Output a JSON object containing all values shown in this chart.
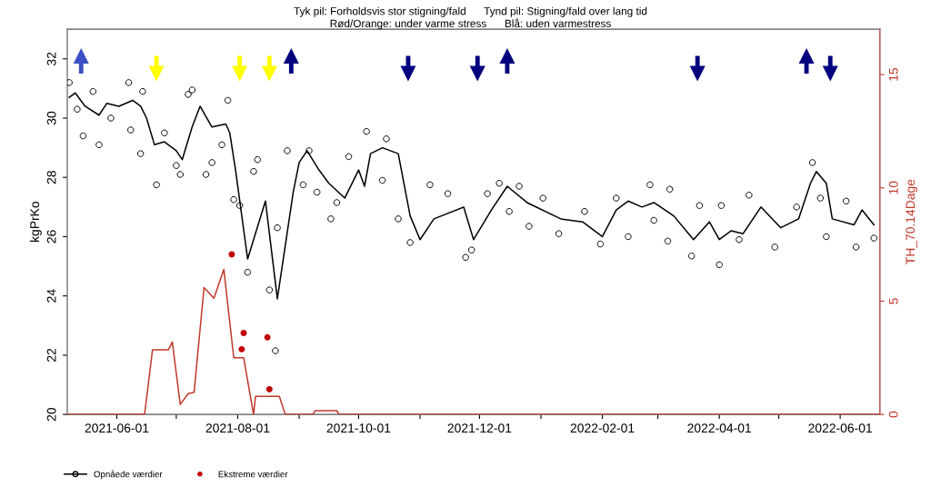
{
  "chart_data": {
    "type": "line",
    "title": "Tyk pil: Forholdsvis stor stigning/fald      Tynd pil: Stigning/fald over lang tid",
    "subtitle": "Rød/Orange: under varme stress      Blå: uden varmestress",
    "ylabel": "kgPrKo",
    "y2label": "TH_70.14Dage",
    "xlim": [
      "2021-05-07",
      "2022-06-21"
    ],
    "xticks": [
      "2021-06-01",
      {
        "value": "2021-07-01",
        "label": null
      },
      "2021-08-01",
      {
        "value": "2021-09-01",
        "label": null
      },
      "2021-10-01",
      {
        "value": "2021-11-01",
        "label": null
      },
      "2021-12-01",
      {
        "value": "2022-01-01",
        "label": null
      },
      "2022-02-01",
      {
        "value": "2022-03-01",
        "label": null
      },
      "2022-04-01",
      {
        "value": "2022-05-01",
        "label": null
      },
      "2022-06-01"
    ],
    "ylim": [
      20,
      33
    ],
    "yticks": [
      20,
      22,
      24,
      26,
      28,
      30,
      32
    ],
    "y2lim": [
      0,
      17
    ],
    "y2ticks": [
      0,
      5,
      10,
      15
    ],
    "grid": false,
    "legend": "bottom",
    "series": [
      {
        "type": "scatter",
        "marker": "circle",
        "color": "#000000",
        "x": [
          "2021-05-08",
          "2021-05-12",
          "2021-05-15",
          "2021-05-20",
          "2021-05-23",
          "2021-05-29",
          "2021-06-07",
          "2021-06-08",
          "2021-06-14",
          "2021-06-13",
          "2021-06-21",
          "2021-06-25",
          "2021-07-01",
          "2021-07-03",
          "2021-07-07",
          "2021-07-09",
          "2021-07-16",
          "2021-07-19",
          "2021-07-24",
          "2021-07-27",
          "2021-07-30",
          "2021-08-02",
          "2021-08-06",
          "2021-08-09",
          "2021-08-11",
          "2021-08-17",
          "2021-08-20",
          "2021-08-21",
          "2021-08-26",
          "2021-09-03",
          "2021-09-06",
          "2021-09-10",
          "2021-09-17",
          "2021-09-20",
          "2021-09-26",
          "2021-10-05",
          "2021-10-13",
          "2021-10-15",
          "2021-10-21",
          "2021-10-27",
          "2021-11-06",
          "2021-11-15",
          "2021-11-24",
          "2021-11-27",
          "2021-12-05",
          "2021-12-11",
          "2021-12-16",
          "2021-12-21",
          "2021-12-26",
          "2022-01-02",
          "2022-01-10",
          "2022-01-23",
          "2022-01-31",
          "2022-02-08",
          "2022-02-14",
          "2022-02-25",
          "2022-02-27",
          "2022-03-07",
          "2022-03-06",
          "2022-03-18",
          "2022-03-22",
          "2022-04-01",
          "2022-04-02",
          "2022-04-11",
          "2022-04-16",
          "2022-04-29",
          "2022-05-10",
          "2022-05-18",
          "2022-05-22",
          "2022-05-25",
          "2022-06-04",
          "2022-06-09",
          "2022-06-18"
        ],
        "values": [
          31.2,
          30.3,
          29.4,
          30.9,
          29.1,
          30.0,
          31.2,
          29.6,
          30.9,
          28.8,
          27.75,
          29.5,
          28.4,
          28.1,
          30.8,
          30.95,
          28.1,
          28.5,
          29.1,
          30.6,
          27.25,
          27.05,
          24.8,
          28.2,
          28.6,
          24.2,
          22.15,
          26.3,
          28.9,
          27.75,
          28.9,
          27.5,
          26.6,
          27.15,
          28.7,
          29.55,
          27.9,
          29.3,
          26.6,
          25.8,
          27.75,
          27.45,
          25.3,
          25.55,
          27.45,
          27.8,
          26.85,
          27.7,
          26.35,
          27.3,
          26.1,
          26.85,
          25.75,
          27.3,
          26.0,
          27.75,
          26.55,
          27.6,
          25.85,
          25.35,
          27.05,
          25.05,
          27.05,
          25.9,
          27.4,
          25.65,
          27.0,
          28.5,
          27.3,
          26.0,
          27.2,
          25.65,
          25.95
        ]
      },
      {
        "name": "Opnåede værdier",
        "color": "#000000",
        "x": [
          "2021-05-08",
          "2021-05-11",
          "2021-05-16",
          "2021-05-23",
          "2021-05-27",
          "2021-06-02",
          "2021-06-09",
          "2021-06-13",
          "2021-06-16",
          "2021-06-20",
          "2021-06-25",
          "2021-07-01",
          "2021-07-04",
          "2021-07-09",
          "2021-07-13",
          "2021-07-19",
          "2021-07-26",
          "2021-07-28",
          "2021-07-31",
          "2021-08-06",
          "2021-08-15",
          "2021-08-21",
          "2021-08-29",
          "2021-09-01",
          "2021-09-05",
          "2021-09-11",
          "2021-09-16",
          "2021-09-24",
          "2021-10-01",
          "2021-10-04",
          "2021-10-07",
          "2021-10-13",
          "2021-10-21",
          "2021-10-27",
          "2021-11-01",
          "2021-11-08",
          "2021-11-23",
          "2021-11-28",
          "2021-12-07",
          "2021-12-15",
          "2021-12-25",
          "2022-01-11",
          "2022-01-22",
          "2022-02-01",
          "2022-02-08",
          "2022-02-14",
          "2022-02-21",
          "2022-02-27",
          "2022-03-09",
          "2022-03-19",
          "2022-03-27",
          "2022-04-01",
          "2022-04-07",
          "2022-04-13",
          "2022-04-22",
          "2022-05-02",
          "2022-05-11",
          "2022-05-17",
          "2022-05-20",
          "2022-05-25",
          "2022-05-28",
          "2022-06-08",
          "2022-06-12",
          "2022-06-18"
        ],
        "values": [
          30.7,
          30.85,
          30.4,
          30.1,
          30.5,
          30.4,
          30.6,
          30.4,
          30.0,
          29.1,
          29.2,
          28.9,
          28.6,
          29.7,
          30.4,
          29.7,
          29.8,
          29.5,
          28.2,
          25.25,
          27.2,
          23.9,
          27.5,
          28.5,
          28.9,
          28.25,
          27.8,
          27.3,
          28.25,
          27.7,
          28.8,
          29.0,
          28.8,
          26.7,
          25.9,
          26.6,
          27.0,
          25.9,
          26.9,
          27.7,
          27.15,
          26.6,
          26.5,
          26.0,
          26.9,
          27.2,
          27.0,
          27.15,
          26.7,
          25.9,
          26.5,
          25.9,
          26.2,
          26.1,
          27.0,
          26.3,
          26.6,
          27.8,
          28.2,
          27.8,
          26.6,
          26.4,
          26.9,
          26.4
        ]
      },
      {
        "type": "scatter",
        "name": "Ekstreme værdier",
        "marker": "circle",
        "color": "#c00000",
        "x": [
          "2021-07-29",
          "2021-08-04",
          "2021-08-03",
          "2021-08-16",
          "2021-08-17"
        ],
        "values": [
          25.4,
          22.75,
          22.2,
          22.6,
          20.85
        ]
      },
      {
        "axis": "y2",
        "color": "#c0392b",
        "x": [
          "2021-05-07",
          "2021-06-15",
          "2021-06-19",
          "2021-06-27",
          "2021-06-29",
          "2021-07-03",
          "2021-07-07",
          "2021-07-10",
          "2021-07-15",
          "2021-07-20",
          "2021-07-25",
          "2021-07-30",
          "2021-08-04",
          "2021-08-09",
          "2021-08-10",
          "2021-08-22",
          "2021-08-25",
          "2021-09-08",
          "2021-09-09",
          "2021-09-20",
          "2021-09-21",
          "2022-06-21"
        ],
        "values": [
          0,
          0,
          2.85,
          2.85,
          3.2,
          0.44,
          0.92,
          0.98,
          5.6,
          5.13,
          6.4,
          2.5,
          2.5,
          0,
          0.8,
          0.8,
          0,
          0,
          0.17,
          0.17,
          0,
          0
        ]
      },
      {
        "type": "line",
        "color": "#3b4fc4",
        "x": [
          "2021-05-14",
          "2021-05-14"
        ],
        "values": [
          31.5,
          32.1
        ]
      },
      {
        "type": "line",
        "color": "#ffff00",
        "x": [
          "2021-06-21",
          "2021-06-21",
          null,
          "2021-08-02",
          "2021-08-02",
          null,
          "2021-08-17",
          "2021-08-17"
        ],
        "values": [
          32.1,
          31.5,
          null,
          32.1,
          31.5,
          null,
          32.1,
          31.5
        ]
      },
      {
        "type": "line",
        "color": "#00007f",
        "x": [
          "2021-08-28",
          "2021-08-28",
          null,
          "2021-10-26",
          "2021-10-26",
          null,
          "2021-11-30",
          "2021-11-30",
          null,
          "2021-12-15",
          "2021-12-15",
          null,
          "2022-03-21",
          "2022-03-21",
          null,
          "2022-05-15",
          "2022-05-15",
          null,
          "2022-05-27",
          "2022-05-27"
        ],
        "values": [
          31.5,
          32.1,
          null,
          32.1,
          31.5,
          null,
          32.1,
          31.5,
          null,
          31.5,
          32.1,
          null,
          32.1,
          31.5,
          null,
          31.5,
          32.1,
          null,
          32.1,
          31.5
        ]
      }
    ]
  }
}
